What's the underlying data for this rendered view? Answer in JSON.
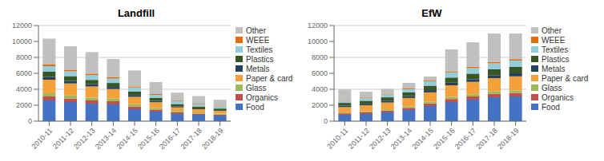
{
  "chart_data": [
    {
      "type": "bar",
      "title": "Landfill",
      "categories": [
        "2010-11",
        "2011-12",
        "2012-13",
        "2013-14",
        "2014-15",
        "2015-16",
        "2016-17",
        "2017-18",
        "2018-19"
      ],
      "series": [
        {
          "name": "Food",
          "color": "#4472C4",
          "values": [
            2600,
            2400,
            2200,
            2100,
            1500,
            1200,
            900,
            800,
            700
          ]
        },
        {
          "name": "Organics",
          "color": "#C0504D",
          "values": [
            500,
            450,
            400,
            400,
            350,
            250,
            200,
            150,
            120
          ]
        },
        {
          "name": "Glass",
          "color": "#9BBB59",
          "values": [
            400,
            380,
            350,
            330,
            300,
            220,
            180,
            150,
            130
          ]
        },
        {
          "name": "Paper & card",
          "color": "#F4A13C",
          "values": [
            1700,
            1500,
            1400,
            1200,
            900,
            700,
            450,
            400,
            350
          ]
        },
        {
          "name": "Metals",
          "color": "#243F60",
          "values": [
            350,
            320,
            280,
            260,
            230,
            180,
            140,
            110,
            90
          ]
        },
        {
          "name": "Plastics",
          "color": "#375623",
          "values": [
            650,
            600,
            550,
            500,
            450,
            350,
            280,
            230,
            190
          ]
        },
        {
          "name": "Textiles",
          "color": "#92CDDC",
          "values": [
            700,
            600,
            600,
            550,
            500,
            400,
            350,
            300,
            250
          ]
        },
        {
          "name": "WEEE",
          "color": "#E46C0A",
          "values": [
            250,
            200,
            180,
            160,
            130,
            100,
            80,
            60,
            50
          ]
        },
        {
          "name": "Other",
          "color": "#C0C0C0",
          "values": [
            3200,
            2950,
            2700,
            2300,
            2000,
            1500,
            1000,
            950,
            800
          ]
        }
      ],
      "ylim": [
        0,
        12000
      ],
      "yticks": [
        0,
        2000,
        4000,
        6000,
        8000,
        10000,
        12000
      ],
      "grid": true,
      "stacked": true,
      "legend": "right"
    },
    {
      "type": "bar",
      "title": "EfW",
      "categories": [
        "2010-11",
        "2011-12",
        "2012-13",
        "2013-14",
        "2014-15",
        "2015-16",
        "2016-17",
        "2017-18",
        "2018-19"
      ],
      "series": [
        {
          "name": "Food",
          "color": "#4472C4",
          "values": [
            800,
            900,
            1100,
            1400,
            1900,
            2400,
            2700,
            3000,
            3100
          ]
        },
        {
          "name": "Organics",
          "color": "#C0504D",
          "values": [
            180,
            200,
            230,
            270,
            330,
            380,
            400,
            430,
            450
          ]
        },
        {
          "name": "Glass",
          "color": "#9BBB59",
          "values": [
            130,
            140,
            160,
            190,
            230,
            270,
            280,
            310,
            320
          ]
        },
        {
          "name": "Paper & card",
          "color": "#F4A13C",
          "values": [
            650,
            750,
            850,
            1050,
            1150,
            1450,
            1550,
            1650,
            1750
          ]
        },
        {
          "name": "Metals",
          "color": "#243F60",
          "values": [
            180,
            190,
            230,
            230,
            280,
            320,
            330,
            370,
            380
          ]
        },
        {
          "name": "Plastics",
          "color": "#375623",
          "values": [
            350,
            380,
            420,
            460,
            560,
            650,
            700,
            750,
            800
          ]
        },
        {
          "name": "Textiles",
          "color": "#92CDDC",
          "values": [
            280,
            320,
            370,
            410,
            560,
            650,
            700,
            750,
            800
          ]
        },
        {
          "name": "WEEE",
          "color": "#E46C0A",
          "values": [
            80,
            90,
            90,
            90,
            130,
            140,
            170,
            180,
            180
          ]
        },
        {
          "name": "Other",
          "color": "#C0C0C0",
          "values": [
            1330,
            730,
            590,
            700,
            460,
            2740,
            3070,
            3560,
            3220
          ]
        }
      ],
      "ylim": [
        0,
        12000
      ],
      "yticks": [
        0,
        2000,
        4000,
        6000,
        8000,
        10000,
        12000
      ],
      "grid": true,
      "stacked": true,
      "legend": "right"
    }
  ]
}
